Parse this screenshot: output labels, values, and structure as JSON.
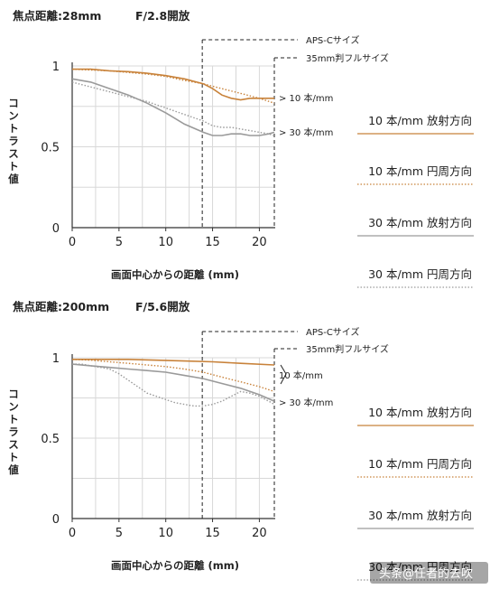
{
  "watermark": "头条@任者的去吹",
  "colors": {
    "orange": "#c8823a",
    "gray": "#9a9a9a",
    "axis": "#333333",
    "grid": "#d8d8d8"
  },
  "chart_data": [
    {
      "type": "line",
      "header": {
        "focal": "焦点距離:28mm",
        "aperture": "F/2.8開放"
      },
      "xlabel": "画面中心からの距離 (mm)",
      "ylabel": "コントラスト値",
      "xlim": [
        0,
        21.6
      ],
      "ylim": [
        0,
        1
      ],
      "x_ticks": [
        0,
        5,
        10,
        15,
        20
      ],
      "x_tick_labels": [
        "0",
        "5",
        "10",
        "15",
        "20"
      ],
      "y_ticks": [
        0,
        0.5,
        1
      ],
      "y_tick_labels": [
        "0",
        "0.5",
        "1"
      ],
      "grid": true,
      "reference_lines": [
        {
          "x": 13.9,
          "label": "APS-Cサイズ"
        },
        {
          "x": 21.6,
          "label": "35mm判フルサイズ"
        }
      ],
      "annotations": [
        "> 10 本/mm",
        "> 30 本/mm"
      ],
      "series": [
        {
          "name": "10 本/mm 放射方向",
          "color": "orange",
          "style": "solid",
          "x": [
            0,
            2,
            4,
            6,
            8,
            10,
            12,
            14,
            15,
            16,
            17,
            18,
            19,
            20,
            21,
            21.6
          ],
          "y": [
            0.98,
            0.98,
            0.97,
            0.965,
            0.955,
            0.94,
            0.92,
            0.89,
            0.86,
            0.82,
            0.8,
            0.79,
            0.8,
            0.8,
            0.8,
            0.8
          ]
        },
        {
          "name": "10 本/mm 円周方向",
          "color": "orange",
          "style": "dotted",
          "x": [
            0,
            2,
            4,
            6,
            8,
            10,
            12,
            14,
            16,
            18,
            20,
            21.6
          ],
          "y": [
            0.98,
            0.975,
            0.97,
            0.96,
            0.95,
            0.935,
            0.91,
            0.89,
            0.86,
            0.83,
            0.8,
            0.77
          ]
        },
        {
          "name": "30 本/mm 放射方向",
          "color": "gray",
          "style": "solid",
          "x": [
            0,
            2,
            4,
            6,
            8,
            10,
            12,
            14,
            15,
            16,
            17,
            18,
            19,
            20,
            21,
            21.6
          ],
          "y": [
            0.92,
            0.9,
            0.86,
            0.82,
            0.77,
            0.71,
            0.64,
            0.59,
            0.57,
            0.57,
            0.58,
            0.58,
            0.57,
            0.57,
            0.58,
            0.59
          ]
        },
        {
          "name": "30 本/mm 円周方向",
          "color": "gray",
          "style": "dotted",
          "x": [
            0,
            2,
            4,
            6,
            8,
            10,
            12,
            14,
            15,
            16,
            17,
            18,
            19,
            20,
            21,
            21.6
          ],
          "y": [
            0.9,
            0.87,
            0.84,
            0.81,
            0.78,
            0.74,
            0.7,
            0.66,
            0.63,
            0.62,
            0.62,
            0.61,
            0.6,
            0.59,
            0.58,
            0.57
          ]
        }
      ]
    },
    {
      "type": "line",
      "header": {
        "focal": "焦点距離:200mm",
        "aperture": "F/5.6開放"
      },
      "xlabel": "画面中心からの距離 (mm)",
      "ylabel": "コントラスト値",
      "xlim": [
        0,
        21.6
      ],
      "ylim": [
        0,
        1
      ],
      "x_ticks": [
        0,
        5,
        10,
        15,
        20
      ],
      "x_tick_labels": [
        "0",
        "5",
        "10",
        "15",
        "20"
      ],
      "y_ticks": [
        0,
        0.5,
        1
      ],
      "y_tick_labels": [
        "0",
        "0.5",
        "1"
      ],
      "grid": true,
      "reference_lines": [
        {
          "x": 13.9,
          "label": "APS-Cサイズ"
        },
        {
          "x": 21.6,
          "label": "35mm判フルサイズ"
        }
      ],
      "annotations": [
        "10 本/mm",
        "> 30 本/mm"
      ],
      "series": [
        {
          "name": "10 本/mm 放射方向",
          "color": "orange",
          "style": "solid",
          "x": [
            0,
            3,
            6,
            9,
            12,
            15,
            18,
            21.6
          ],
          "y": [
            0.99,
            0.99,
            0.99,
            0.985,
            0.98,
            0.975,
            0.965,
            0.955
          ]
        },
        {
          "name": "10 本/mm 円周方向",
          "color": "orange",
          "style": "dotted",
          "x": [
            0,
            2,
            4,
            6,
            8,
            10,
            12,
            14,
            16,
            18,
            20,
            21.6
          ],
          "y": [
            0.99,
            0.985,
            0.975,
            0.965,
            0.955,
            0.945,
            0.93,
            0.91,
            0.88,
            0.85,
            0.82,
            0.79
          ]
        },
        {
          "name": "30 本/mm 放射方向",
          "color": "gray",
          "style": "solid",
          "x": [
            0,
            2,
            4,
            6,
            8,
            10,
            12,
            14,
            16,
            18,
            20,
            21.6
          ],
          "y": [
            0.96,
            0.95,
            0.94,
            0.93,
            0.92,
            0.91,
            0.89,
            0.87,
            0.84,
            0.81,
            0.77,
            0.73
          ]
        },
        {
          "name": "30 本/mm 円周方向",
          "color": "gray",
          "style": "dotted",
          "x": [
            0,
            1,
            2,
            3,
            4,
            5,
            6,
            7,
            8,
            9,
            10,
            11,
            12,
            13,
            14,
            15,
            16,
            17,
            18,
            19,
            20,
            21,
            21.6
          ],
          "y": [
            0.96,
            0.96,
            0.95,
            0.94,
            0.93,
            0.9,
            0.86,
            0.82,
            0.78,
            0.76,
            0.74,
            0.72,
            0.71,
            0.7,
            0.7,
            0.71,
            0.73,
            0.76,
            0.79,
            0.78,
            0.76,
            0.73,
            0.71
          ]
        }
      ]
    }
  ]
}
